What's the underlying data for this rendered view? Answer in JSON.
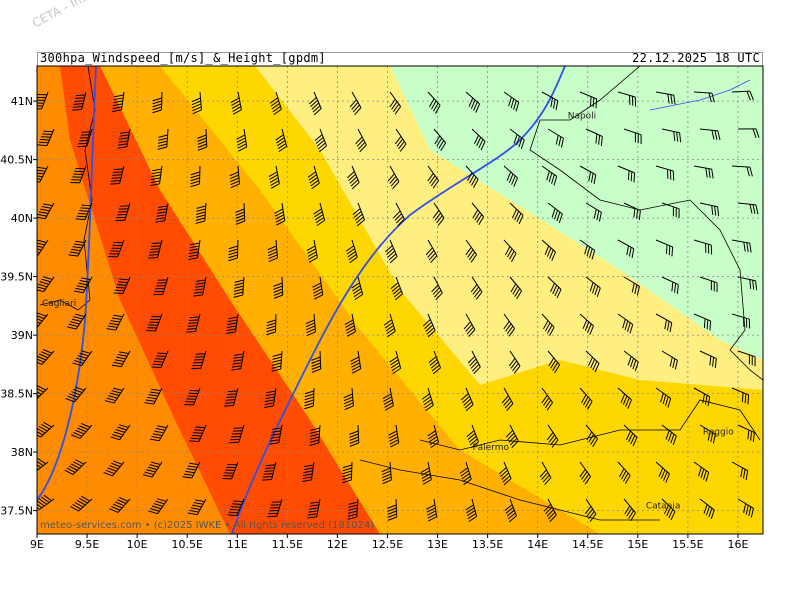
{
  "watermark": "CETA - Inst. ...",
  "header": {
    "title": "300hpa_Windspeed_[m/s]_&_Height_[gpdm]",
    "valid": "22.12.2025 18 UTC"
  },
  "footer": "meteo-services.com  •  (c)2025 IWKE  •  All rights reserved (181024)",
  "axes": {
    "lon_ticks": [
      "9E",
      "9.5E",
      "10E",
      "10.5E",
      "11E",
      "11.5E",
      "12E",
      "12.5E",
      "13E",
      "13.5E",
      "14E",
      "14.5E",
      "15E",
      "15.5E",
      "16E"
    ],
    "lat_ticks": [
      "41N",
      "40.5N",
      "40N",
      "39.5N",
      "39N",
      "38.5N",
      "38N",
      "37.5N"
    ]
  },
  "cities": [
    {
      "name": "Napoli",
      "lon": 14.3,
      "lat": 40.85
    },
    {
      "name": "Cagliari",
      "lon": 9.05,
      "lat": 39.25
    },
    {
      "name": "Palermo",
      "lon": 13.35,
      "lat": 38.02
    },
    {
      "name": "Reggio",
      "lon": 15.65,
      "lat": 38.15
    },
    {
      "name": "Catania",
      "lon": 15.08,
      "lat": 37.52
    }
  ],
  "colors": {
    "band1": "#c8ffc8",
    "band2": "#ffee80",
    "band3": "#ffd700",
    "band4": "#ffb000",
    "band5": "#ff8c00",
    "band6": "#ff6a00",
    "band7": "#ff4c00",
    "height_contour": "#3050e8"
  }
}
